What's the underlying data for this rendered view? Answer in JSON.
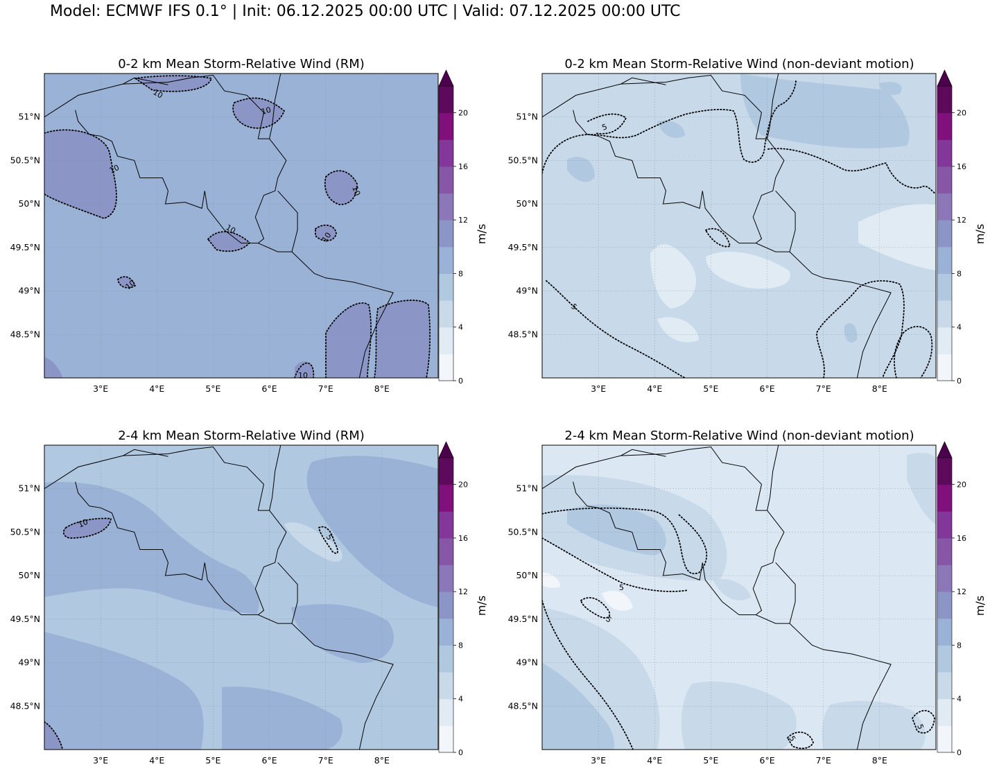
{
  "suptitle": "Model: ECMWF IFS 0.1° | Init: 06.12.2025 00:00 UTC | Valid: 07.12.2025 00:00 UTC",
  "colorbar": {
    "label": "m/s",
    "ticks": [
      "0",
      "4",
      "8",
      "12",
      "16",
      "20"
    ],
    "levels": [
      0,
      2,
      4,
      6,
      8,
      10,
      12,
      14,
      16,
      18,
      20,
      22
    ],
    "colors": [
      "#f2f6fa",
      "#e0ebf4",
      "#c8d9ea",
      "#b0c9e1",
      "#9ab2d6",
      "#8c96c6",
      "#8c78b8",
      "#8856a7",
      "#84379b",
      "#810f7c",
      "#5e0a5c"
    ],
    "extend_color": "#4d004b"
  },
  "axes": {
    "lon_labels": [
      "3°E",
      "4°E",
      "5°E",
      "6°E",
      "7°E",
      "8°E"
    ],
    "lat_labels": [
      "51°N",
      "50.5°N",
      "50°N",
      "49.5°N",
      "49°N",
      "48.5°N"
    ]
  },
  "panels": [
    {
      "title": "0-2 km Mean Storm-Relative Wind (RM)",
      "base_color": "#9ab2d6",
      "contour_labels": [
        "10",
        "10",
        "10",
        "10",
        "10",
        "10",
        "10",
        "10"
      ]
    },
    {
      "title": "0-2 km Mean Storm-Relative Wind (non-deviant motion)",
      "base_color": "#c8d9ea",
      "contour_labels": [
        "5",
        "5"
      ]
    },
    {
      "title": "2-4 km Mean Storm-Relative Wind (RM)",
      "base_color": "#b0c9e1",
      "contour_labels": [
        "10",
        "5"
      ]
    },
    {
      "title": "2-4 km Mean Storm-Relative Wind (non-deviant motion)",
      "base_color": "#dbe7f2",
      "contour_labels": [
        "5",
        "5",
        "5",
        "5"
      ]
    }
  ],
  "chart_data": {
    "type": "map",
    "variable": "Mean Storm-Relative Wind",
    "units": "m/s",
    "lon_range": [
      2.0,
      9.0
    ],
    "lat_range": [
      48.0,
      51.5
    ],
    "grid": true
  }
}
